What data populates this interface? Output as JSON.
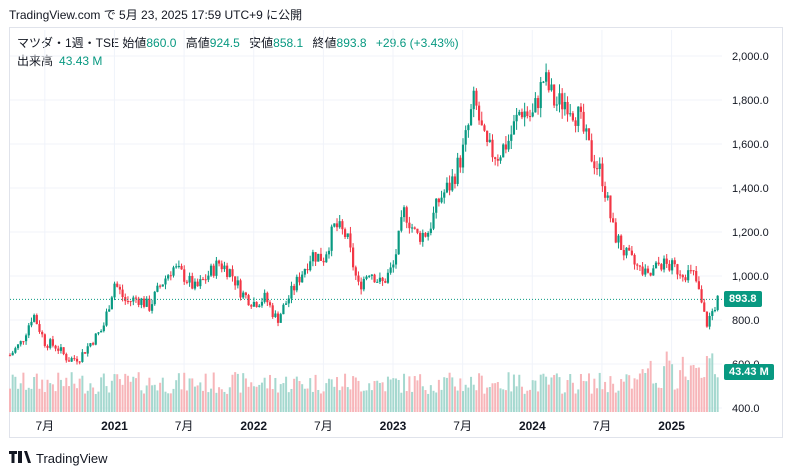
{
  "header": {
    "snapshot_line": "TradingView.com で 5月 23, 2025 17:59 UTC+9 に公開"
  },
  "legend": {
    "symbol": "マツダ・1週・TSE",
    "open_label": "始値",
    "open_value": "860.0",
    "high_label": "高値",
    "high_value": "924.5",
    "low_label": "安値",
    "low_value": "858.1",
    "close_label": "終値",
    "close_value": "893.8",
    "change": "+29.6 (+3.43%)",
    "volume_label": "出来高",
    "volume_value": "43.43 M"
  },
  "price_tag": {
    "text": "893.8",
    "color": "#089981"
  },
  "volume_tag": {
    "text": "43.43 M",
    "color": "#089981"
  },
  "brand": {
    "text": "TradingView",
    "logo": "tradingview-logo-icon"
  },
  "colors": {
    "up": "#089981",
    "down": "#f23645",
    "vol_up": "#a5d8cf",
    "vol_down": "#f7b5b9"
  },
  "chart_data": {
    "type": "candlestick",
    "title": "",
    "y_ticks": [
      "2,000.0",
      "1,800.0",
      "1,600.0",
      "1,400.0",
      "1,200.0",
      "1,000.0",
      "800.0",
      "600.0",
      "400.0"
    ],
    "y_tick_values": [
      2000,
      1800,
      1600,
      1400,
      1200,
      1000,
      800,
      600,
      400
    ],
    "ylim": [
      400,
      2100
    ],
    "x_ticks": [
      "7月",
      "2021",
      "7月",
      "2022",
      "7月",
      "2023",
      "7月",
      "2024",
      "7月",
      "2025"
    ],
    "x_tick_dates": [
      "2020-07",
      "2021-01",
      "2021-07",
      "2022-01",
      "2022-07",
      "2023-01",
      "2023-07",
      "2024-01",
      "2024-07",
      "2025-01"
    ],
    "x_range": [
      "2020-04",
      "2025-05"
    ],
    "last_close": 893.8,
    "series": {
      "close_path": [
        [
          "2020-04",
          640
        ],
        [
          "2020-05",
          700
        ],
        [
          "2020-06",
          830
        ],
        [
          "2020-07",
          700
        ],
        [
          "2020-08",
          680
        ],
        [
          "2020-09",
          620
        ],
        [
          "2020-10",
          630
        ],
        [
          "2020-11",
          700
        ],
        [
          "2020-12",
          760
        ],
        [
          "2021-01",
          970
        ],
        [
          "2021-02",
          880
        ],
        [
          "2021-03",
          900
        ],
        [
          "2021-04",
          860
        ],
        [
          "2021-05",
          960
        ],
        [
          "2021-06",
          1040
        ],
        [
          "2021-07",
          1000
        ],
        [
          "2021-08",
          940
        ],
        [
          "2021-09",
          1000
        ],
        [
          "2021-10",
          1060
        ],
        [
          "2021-11",
          1020
        ],
        [
          "2021-12",
          920
        ],
        [
          "2022-01",
          880
        ],
        [
          "2022-02",
          900
        ],
        [
          "2022-03",
          800
        ],
        [
          "2022-04",
          900
        ],
        [
          "2022-05",
          1000
        ],
        [
          "2022-06",
          1100
        ],
        [
          "2022-07",
          1080
        ],
        [
          "2022-08",
          1230
        ],
        [
          "2022-09",
          1180
        ],
        [
          "2022-10",
          950
        ],
        [
          "2022-11",
          1030
        ],
        [
          "2022-12",
          960
        ],
        [
          "2023-01",
          1040
        ],
        [
          "2023-02",
          1300
        ],
        [
          "2023-03",
          1180
        ],
        [
          "2023-04",
          1200
        ],
        [
          "2023-05",
          1350
        ],
        [
          "2023-06",
          1420
        ],
        [
          "2023-07",
          1560
        ],
        [
          "2023-08",
          1800
        ],
        [
          "2023-09",
          1580
        ],
        [
          "2023-10",
          1550
        ],
        [
          "2023-11",
          1620
        ],
        [
          "2023-12",
          1760
        ],
        [
          "2024-01",
          1720
        ],
        [
          "2024-02",
          1900
        ],
        [
          "2024-03",
          1780
        ],
        [
          "2024-04",
          1800
        ],
        [
          "2024-05",
          1720
        ],
        [
          "2024-06",
          1560
        ],
        [
          "2024-07",
          1460
        ],
        [
          "2024-08",
          1200
        ],
        [
          "2024-09",
          1100
        ],
        [
          "2024-10",
          1040
        ],
        [
          "2024-11",
          990
        ],
        [
          "2024-12",
          1060
        ],
        [
          "2025-01",
          1040
        ],
        [
          "2025-02",
          1020
        ],
        [
          "2025-03",
          1000
        ],
        [
          "2025-04",
          780
        ],
        [
          "2025-05",
          894
        ]
      ]
    }
  }
}
